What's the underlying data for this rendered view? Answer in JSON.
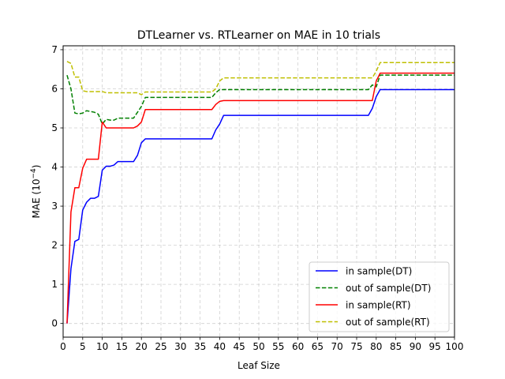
{
  "chart_data": {
    "type": "line",
    "title": "DTLearner vs. RTLearner on MAE in 10 trials",
    "xlabel": "Leaf Size",
    "ylabel_main": "MAE (10",
    "ylabel_exp": "−4",
    "ylabel_close": ")",
    "xlim": [
      0,
      100
    ],
    "ylim": [
      -0.35,
      7.1
    ],
    "xticks": [
      0,
      5,
      10,
      15,
      20,
      25,
      30,
      35,
      40,
      45,
      50,
      55,
      60,
      65,
      70,
      75,
      80,
      85,
      90,
      95,
      100
    ],
    "yticks": [
      0,
      1,
      2,
      3,
      4,
      5,
      6,
      7
    ],
    "grid": true,
    "legend_position": "lower-right",
    "series": [
      {
        "name": "in sample(DT)",
        "color": "#0000ff",
        "dash": "solid",
        "x": [
          1,
          2,
          3,
          4,
          5,
          6,
          7,
          8,
          9,
          10,
          11,
          12,
          13,
          14,
          15,
          16,
          17,
          18,
          19,
          20,
          21,
          22,
          25,
          30,
          35,
          38,
          39,
          40,
          41,
          45,
          50,
          55,
          60,
          65,
          70,
          75,
          78,
          79,
          80,
          81,
          85,
          90,
          95,
          100
        ],
        "y": [
          0,
          1.4,
          2.1,
          2.15,
          2.9,
          3.1,
          3.2,
          3.2,
          3.25,
          3.92,
          4.02,
          4.02,
          4.05,
          4.14,
          4.14,
          4.14,
          4.14,
          4.14,
          4.3,
          4.62,
          4.72,
          4.72,
          4.72,
          4.72,
          4.72,
          4.72,
          4.95,
          5.1,
          5.32,
          5.32,
          5.32,
          5.32,
          5.32,
          5.32,
          5.32,
          5.32,
          5.32,
          5.5,
          5.8,
          5.98,
          5.98,
          5.98,
          5.98,
          5.98
        ]
      },
      {
        "name": "out of sample(DT)",
        "color": "#008000",
        "dash": "dashed",
        "x": [
          1,
          2,
          3,
          4,
          5,
          6,
          7,
          8,
          9,
          10,
          11,
          12,
          13,
          14,
          15,
          16,
          17,
          18,
          19,
          20,
          21,
          25,
          30,
          35,
          38,
          39,
          40,
          41,
          45,
          50,
          55,
          60,
          65,
          70,
          75,
          78,
          79,
          80,
          81,
          85,
          90,
          95,
          100
        ],
        "y": [
          6.35,
          6.0,
          5.38,
          5.36,
          5.38,
          5.44,
          5.42,
          5.4,
          5.35,
          5.1,
          5.22,
          5.2,
          5.2,
          5.25,
          5.25,
          5.25,
          5.25,
          5.25,
          5.4,
          5.55,
          5.78,
          5.78,
          5.78,
          5.78,
          5.78,
          5.9,
          5.98,
          5.98,
          5.98,
          5.98,
          5.98,
          5.98,
          5.98,
          5.98,
          5.98,
          5.98,
          6.1,
          6.05,
          6.35,
          6.35,
          6.35,
          6.35,
          6.35
        ]
      },
      {
        "name": "in sample(RT)",
        "color": "#ff0000",
        "dash": "solid",
        "x": [
          1,
          2,
          3,
          4,
          5,
          6,
          7,
          8,
          9,
          10,
          11,
          12,
          15,
          18,
          19,
          20,
          21,
          25,
          30,
          35,
          38,
          39,
          40,
          41,
          45,
          50,
          55,
          60,
          65,
          70,
          75,
          78,
          79,
          80,
          81,
          85,
          90,
          95,
          100
        ],
        "y": [
          0,
          2.85,
          3.47,
          3.47,
          3.97,
          4.2,
          4.2,
          4.2,
          4.2,
          5.15,
          5.0,
          5.0,
          5.0,
          5.0,
          5.05,
          5.15,
          5.47,
          5.47,
          5.47,
          5.47,
          5.47,
          5.6,
          5.68,
          5.7,
          5.7,
          5.7,
          5.7,
          5.7,
          5.7,
          5.7,
          5.7,
          5.7,
          5.7,
          6.2,
          6.4,
          6.4,
          6.4,
          6.4,
          6.4
        ]
      },
      {
        "name": "out of sample(RT)",
        "color": "#bfbf00",
        "dash": "dashed",
        "x": [
          1,
          2,
          3,
          4,
          5,
          6,
          7,
          8,
          9,
          10,
          11,
          12,
          15,
          18,
          19,
          20,
          21,
          25,
          30,
          35,
          38,
          39,
          40,
          41,
          45,
          50,
          55,
          60,
          65,
          70,
          75,
          78,
          79,
          80,
          81,
          85,
          90,
          95,
          100
        ],
        "y": [
          6.7,
          6.65,
          6.3,
          6.3,
          5.95,
          5.93,
          5.93,
          5.93,
          5.93,
          5.93,
          5.9,
          5.9,
          5.9,
          5.9,
          5.9,
          5.85,
          5.92,
          5.92,
          5.92,
          5.92,
          5.92,
          6.0,
          6.2,
          6.28,
          6.28,
          6.28,
          6.28,
          6.28,
          6.28,
          6.28,
          6.28,
          6.28,
          6.28,
          6.45,
          6.67,
          6.67,
          6.67,
          6.67,
          6.67
        ]
      }
    ]
  }
}
